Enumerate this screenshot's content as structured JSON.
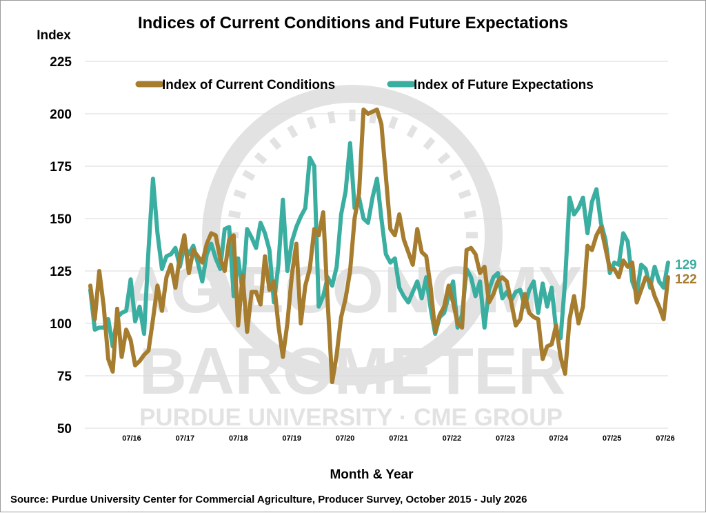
{
  "chart_data": {
    "type": "line",
    "title": "Indices of Current Conditions and Future Expectations",
    "ylabel": "Index",
    "xlabel": "Month & Year",
    "source": "Source: Purdue University Center for Commercial Agriculture, Producer Survey, October 2015 - July 2026",
    "ylim": [
      50,
      225
    ],
    "yticks": [
      "50",
      "75",
      "100",
      "125",
      "150",
      "175",
      "200",
      "225"
    ],
    "xticks": [
      "07/16",
      "07/17",
      "07/18",
      "07/19",
      "07/20",
      "07/21",
      "07/22",
      "07/23",
      "07/24",
      "07/25",
      "07/26"
    ],
    "grid": true,
    "legend_position": "top",
    "end_labels": {
      "current": "122",
      "future": "129"
    },
    "watermark": {
      "line1": "AG ECONOMY",
      "line2": "BAROMETER",
      "line3": "PURDUE UNIVERSITY · CME GROUP"
    },
    "series": [
      {
        "name": "Index of Current Conditions",
        "color": "#a67c2e",
        "values": [
          118,
          102,
          125,
          108,
          83,
          77,
          107,
          84,
          97,
          92,
          80,
          82,
          85,
          87,
          102,
          118,
          106,
          122,
          128,
          117,
          132,
          142,
          124,
          135,
          132,
          129,
          138,
          143,
          142,
          131,
          125,
          140,
          142,
          99,
          123,
          96,
          115,
          115,
          109,
          132,
          116,
          120,
          99,
          84,
          100,
          123,
          138,
          100,
          118,
          126,
          145,
          142,
          153,
          110,
          72,
          85,
          103,
          112,
          125,
          150,
          162,
          202,
          200,
          201,
          202,
          195,
          170,
          145,
          142,
          152,
          140,
          134,
          128,
          145,
          134,
          132,
          117,
          96,
          104,
          108,
          118,
          110,
          100,
          98,
          135,
          136,
          133,
          124,
          127,
          110,
          114,
          120,
          122,
          120,
          110,
          99,
          102,
          114,
          105,
          103,
          102,
          83,
          89,
          90,
          99,
          84,
          76,
          102,
          113,
          100,
          108,
          137,
          135,
          142,
          146,
          136,
          126,
          126,
          122,
          130,
          127,
          129,
          110,
          116,
          122,
          120,
          113,
          108,
          102,
          122
        ]
      },
      {
        "name": "Index of Future Expectations",
        "color": "#3aaea0",
        "values": [
          116,
          97,
          98,
          98,
          102,
          89,
          103,
          105,
          106,
          121,
          101,
          108,
          95,
          135,
          169,
          143,
          126,
          132,
          133,
          136,
          127,
          137,
          133,
          137,
          129,
          120,
          133,
          138,
          131,
          126,
          145,
          146,
          113,
          131,
          115,
          145,
          141,
          136,
          148,
          143,
          135,
          110,
          128,
          159,
          125,
          139,
          146,
          151,
          155,
          179,
          175,
          108,
          113,
          122,
          118,
          127,
          152,
          163,
          186,
          155,
          160,
          150,
          148,
          160,
          169,
          150,
          133,
          129,
          131,
          117,
          113,
          110,
          115,
          120,
          112,
          122,
          107,
          95,
          103,
          105,
          113,
          120,
          98,
          104,
          126,
          122,
          113,
          120,
          98,
          116,
          122,
          124,
          112,
          115,
          111,
          115,
          116,
          108,
          116,
          120,
          105,
          119,
          108,
          117,
          97,
          93,
          120,
          160,
          152,
          155,
          160,
          143,
          158,
          164,
          148,
          140,
          124,
          129,
          128,
          143,
          139,
          120,
          114,
          128,
          126,
          117,
          127,
          120,
          117,
          129
        ]
      }
    ]
  }
}
